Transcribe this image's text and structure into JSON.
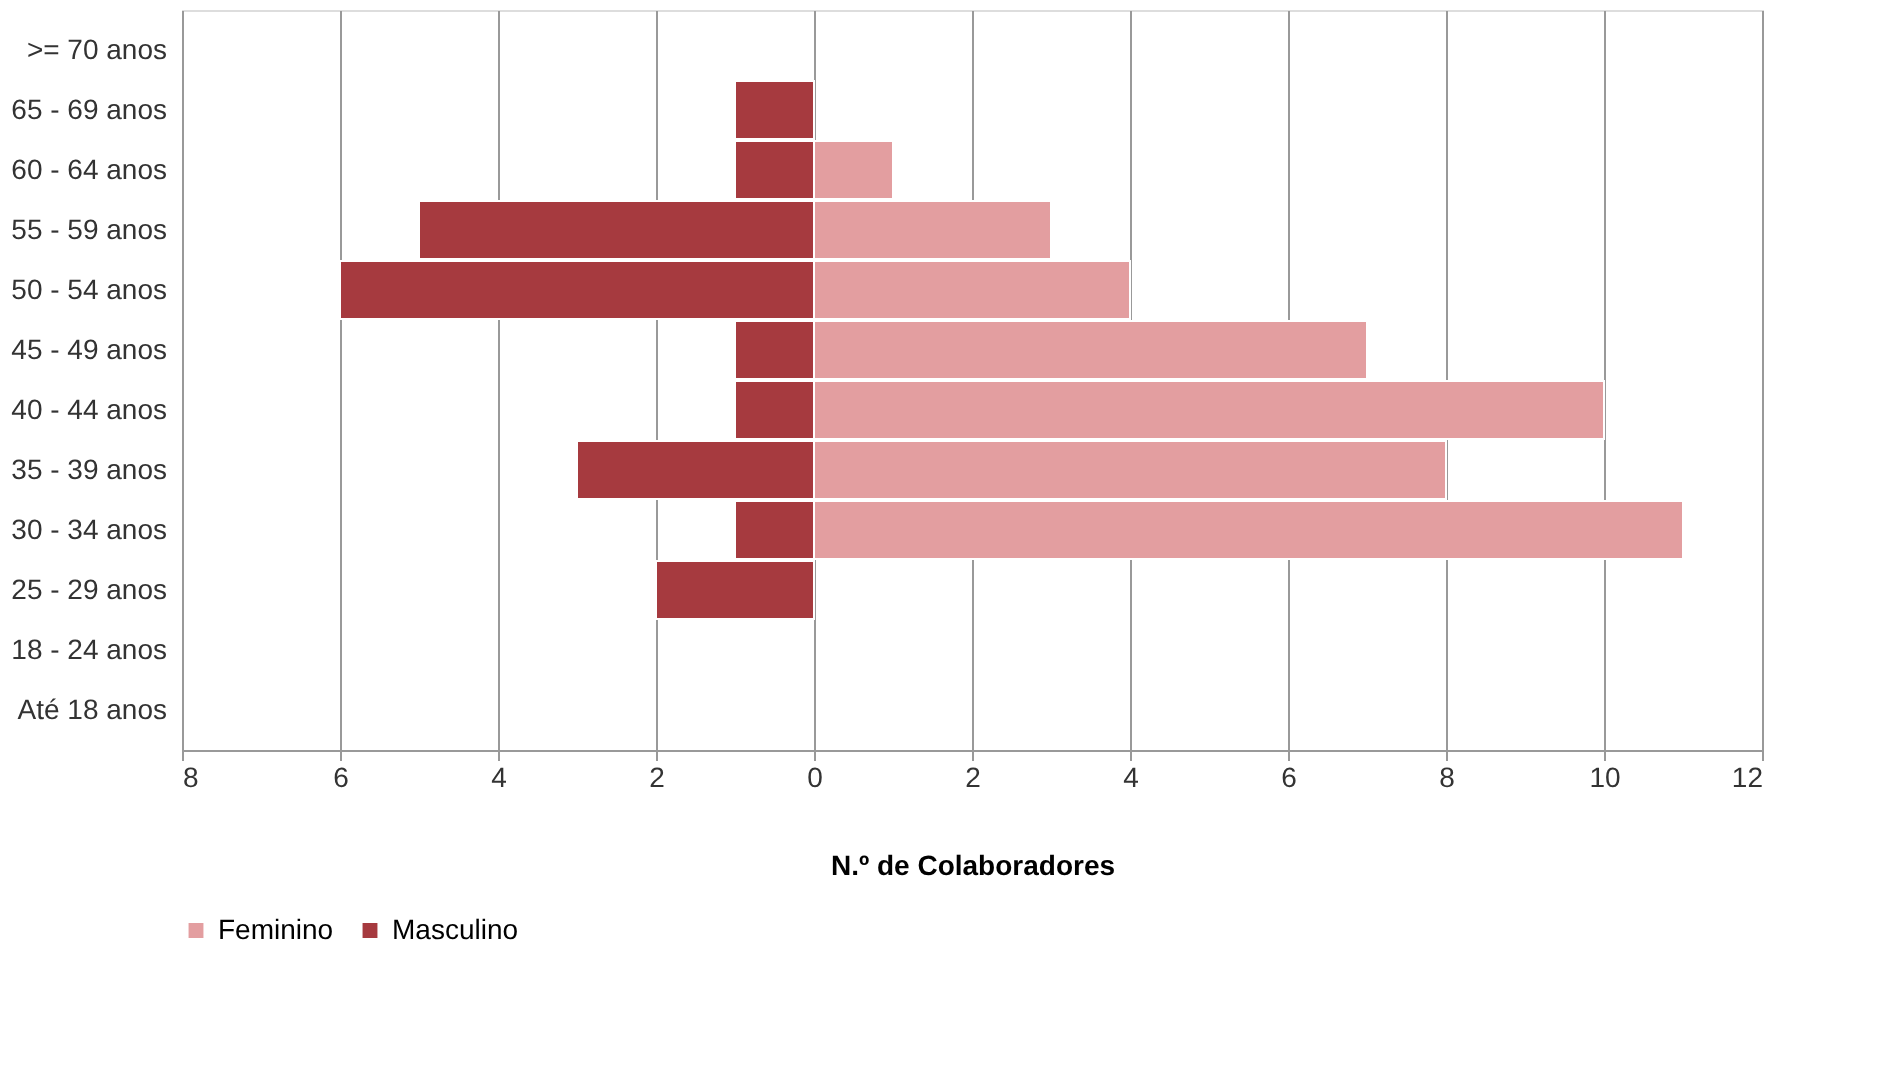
{
  "chart_data": {
    "type": "bar",
    "orientation": "horizontal",
    "xlabel": "N.º de Colaboradores",
    "categories": [
      ">= 70 anos",
      "65 - 69 anos",
      "60 - 64 anos",
      "55 - 59 anos",
      "50 - 54 anos",
      "45 - 49 anos",
      "40 - 44 anos",
      "35 - 39 anos",
      "30 - 34 anos",
      "25 - 29 anos",
      "18 - 24 anos",
      "Até 18 anos"
    ],
    "series": [
      {
        "name": "Feminino",
        "color": "#e39ea0",
        "values": [
          null,
          null,
          1,
          3,
          4,
          7,
          10,
          8,
          11,
          null,
          null,
          null
        ]
      },
      {
        "name": "Masculino",
        "color": "#a63a3f",
        "values": [
          null,
          -1,
          -1,
          -5,
          -6,
          -1,
          -1,
          -3,
          -1,
          -2,
          null,
          null
        ]
      }
    ],
    "xlim": [
      -8,
      12
    ],
    "xticks": [
      {
        "value": -8,
        "label": "8"
      },
      {
        "value": -6,
        "label": "6"
      },
      {
        "value": -4,
        "label": "4"
      },
      {
        "value": -2,
        "label": "2"
      },
      0,
      2,
      4,
      6,
      8,
      10,
      12
    ],
    "grid": "x",
    "legend": "bottom",
    "stacked": true
  }
}
